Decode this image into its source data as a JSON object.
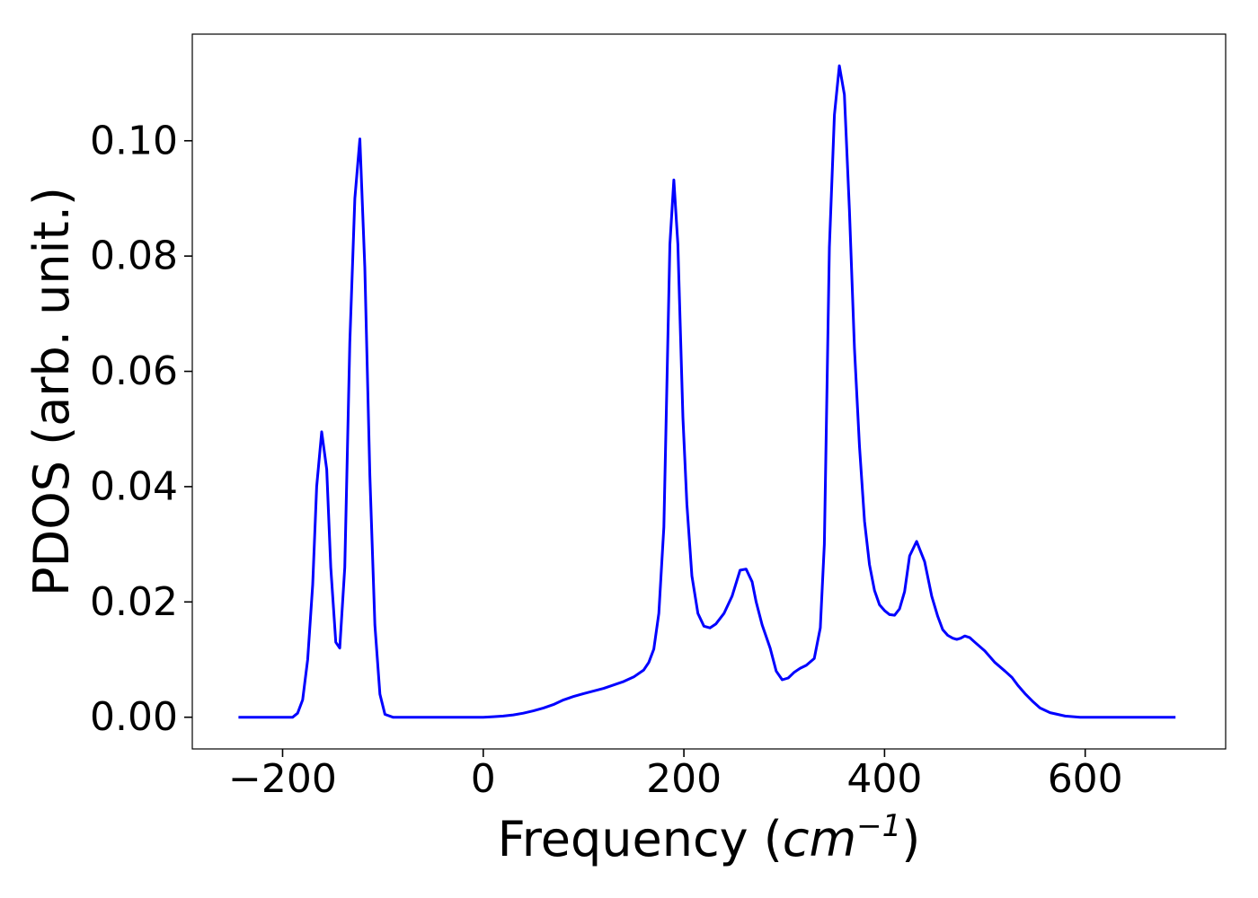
{
  "chart_data": {
    "type": "line",
    "xlabel_main": "Frequency (",
    "xlabel_unit_base": "cm",
    "xlabel_unit_exp": "−1",
    "xlabel_close": ")",
    "ylabel": "PDOS (arb. unit.)",
    "xlim": [
      -290,
      740
    ],
    "ylim": [
      -0.0055,
      0.1185
    ],
    "xticks": [
      -200,
      0,
      200,
      400,
      600
    ],
    "xtick_labels": [
      "−200",
      "0",
      "200",
      "400",
      "600"
    ],
    "yticks": [
      0.0,
      0.02,
      0.04,
      0.06,
      0.08,
      0.1
    ],
    "ytick_labels": [
      "0.00",
      "0.02",
      "0.04",
      "0.06",
      "0.08",
      "0.10"
    ],
    "grid": false,
    "colors": {
      "series": "#0000ff"
    },
    "series": [
      {
        "x": [
          -244,
          -230,
          -210,
          -195,
          -190,
          -185,
          -180,
          -175,
          -170,
          -166,
          -161,
          -156,
          -152,
          -147,
          -143,
          -138,
          -133,
          -128,
          -123,
          -118,
          -113,
          -108,
          -103,
          -98,
          -90,
          -70,
          -50,
          -30,
          -10,
          0,
          10,
          20,
          30,
          40,
          50,
          60,
          70,
          80,
          90,
          100,
          120,
          140,
          150,
          160,
          165,
          170,
          175,
          180,
          186,
          190,
          194,
          199,
          203,
          208,
          214,
          220,
          226,
          232,
          240,
          248,
          256,
          262,
          268,
          272,
          278,
          286,
          292,
          298,
          304,
          310,
          316,
          322,
          330,
          336,
          340,
          345,
          350,
          355,
          360,
          365,
          370,
          375,
          380,
          385,
          390,
          395,
          400,
          405,
          410,
          415,
          420,
          425,
          432,
          440,
          447,
          453,
          458,
          463,
          468,
          472,
          476,
          480,
          485,
          490,
          500,
          510,
          520,
          527,
          533,
          540,
          548,
          555,
          565,
          580,
          595,
          605,
          612,
          618,
          625,
          640,
          660,
          690
        ],
        "values": [
          0.0,
          0.0,
          0.0,
          0.0,
          0.0,
          0.0007,
          0.003,
          0.01,
          0.023,
          0.04,
          0.0495,
          0.043,
          0.026,
          0.013,
          0.012,
          0.026,
          0.065,
          0.09,
          0.1003,
          0.078,
          0.042,
          0.016,
          0.004,
          0.0005,
          0.0,
          0.0,
          0.0,
          0.0,
          0.0,
          0.0,
          0.0001,
          0.0002,
          0.0004,
          0.0007,
          0.0011,
          0.0016,
          0.0022,
          0.003,
          0.0036,
          0.0041,
          0.005,
          0.0062,
          0.007,
          0.0082,
          0.0095,
          0.0118,
          0.018,
          0.033,
          0.082,
          0.0932,
          0.082,
          0.052,
          0.037,
          0.0245,
          0.018,
          0.0158,
          0.0155,
          0.0162,
          0.018,
          0.021,
          0.0255,
          0.0257,
          0.0235,
          0.02,
          0.016,
          0.012,
          0.008,
          0.0065,
          0.0068,
          0.0078,
          0.0085,
          0.009,
          0.0102,
          0.0155,
          0.03,
          0.0815,
          0.1045,
          0.113,
          0.108,
          0.088,
          0.064,
          0.047,
          0.034,
          0.0265,
          0.022,
          0.0195,
          0.0185,
          0.0178,
          0.0177,
          0.0188,
          0.0218,
          0.028,
          0.0305,
          0.027,
          0.021,
          0.0175,
          0.0152,
          0.0142,
          0.0137,
          0.0135,
          0.0137,
          0.0141,
          0.0138,
          0.013,
          0.0115,
          0.0095,
          0.008,
          0.0069,
          0.0055,
          0.0041,
          0.0027,
          0.0016,
          0.0008,
          0.0002,
          0.0,
          0.0,
          0.0,
          0.0,
          0.0,
          0.0,
          0.0,
          0.0
        ]
      }
    ]
  }
}
